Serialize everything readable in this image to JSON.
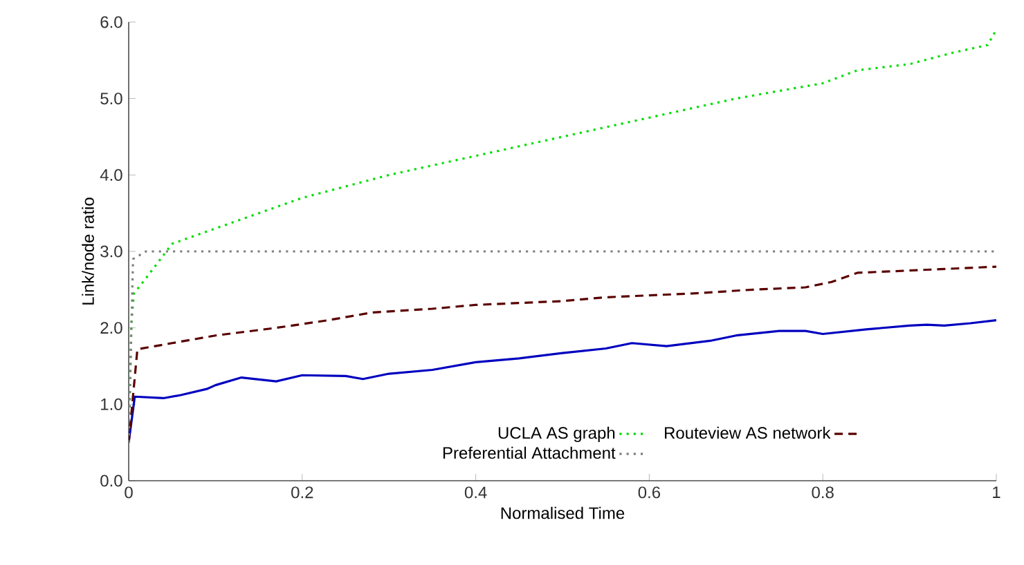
{
  "chart_data": {
    "type": "line",
    "xlabel": "Normalised Time",
    "ylabel": "Link/node ratio",
    "xlim": [
      0,
      1
    ],
    "ylim": [
      0,
      6
    ],
    "xticks": [
      0,
      0.2,
      0.4,
      0.6,
      0.8,
      1
    ],
    "yticks": [
      {
        "value": 0,
        "label": "0.0"
      },
      {
        "value": 1,
        "label": "1.0"
      },
      {
        "value": 2,
        "label": "2.0"
      },
      {
        "value": 3,
        "label": "3.0"
      },
      {
        "value": 4,
        "label": "4.0"
      },
      {
        "value": 5,
        "label": "5.0"
      },
      {
        "value": 6,
        "label": "6.0"
      }
    ],
    "grid": false,
    "legend": "bottom",
    "marker": "none",
    "series": [
      {
        "name": "UCLA AS graph",
        "color": "#00dd00",
        "line_style": "dotted",
        "x": [
          0,
          0.003,
          0.006,
          0.02,
          0.05,
          0.1,
          0.15,
          0.2,
          0.3,
          0.4,
          0.5,
          0.6,
          0.7,
          0.8,
          0.84,
          0.9,
          0.95,
          0.99,
          1
        ],
        "values": [
          0.5,
          2.05,
          2.45,
          2.65,
          3.1,
          3.3,
          3.5,
          3.7,
          4.0,
          4.25,
          4.5,
          4.75,
          5.0,
          5.2,
          5.37,
          5.45,
          5.6,
          5.7,
          5.9
        ]
      },
      {
        "color": "#0000c0",
        "line_style": "solid",
        "x": [
          0,
          0.007,
          0.04,
          0.06,
          0.09,
          0.1,
          0.13,
          0.17,
          0.2,
          0.25,
          0.27,
          0.3,
          0.35,
          0.4,
          0.45,
          0.5,
          0.55,
          0.58,
          0.62,
          0.67,
          0.7,
          0.75,
          0.78,
          0.8,
          0.85,
          0.9,
          0.92,
          0.94,
          0.97,
          1
        ],
        "values": [
          0.5,
          1.1,
          1.08,
          1.12,
          1.2,
          1.25,
          1.35,
          1.3,
          1.38,
          1.37,
          1.33,
          1.4,
          1.45,
          1.55,
          1.6,
          1.67,
          1.73,
          1.8,
          1.76,
          1.83,
          1.9,
          1.96,
          1.96,
          1.92,
          1.98,
          2.03,
          2.04,
          2.03,
          2.06,
          2.1
        ]
      },
      {
        "name": "Routeview AS network",
        "color": "#5a0000",
        "line_style": "dashed",
        "x": [
          0,
          0.01,
          0.05,
          0.1,
          0.17,
          0.2,
          0.23,
          0.28,
          0.35,
          0.4,
          0.5,
          0.55,
          0.65,
          0.72,
          0.78,
          0.81,
          0.84,
          0.9,
          1
        ],
        "values": [
          0.5,
          1.72,
          1.8,
          1.9,
          2.0,
          2.05,
          2.1,
          2.2,
          2.25,
          2.3,
          2.35,
          2.4,
          2.45,
          2.5,
          2.53,
          2.6,
          2.72,
          2.75,
          2.8
        ]
      },
      {
        "name": "Preferential Attachment",
        "color": "#808080",
        "line_style": "dotted",
        "x": [
          0,
          0.005,
          0.02,
          1
        ],
        "values": [
          0.5,
          2.9,
          3.0,
          3.0
        ]
      }
    ]
  }
}
